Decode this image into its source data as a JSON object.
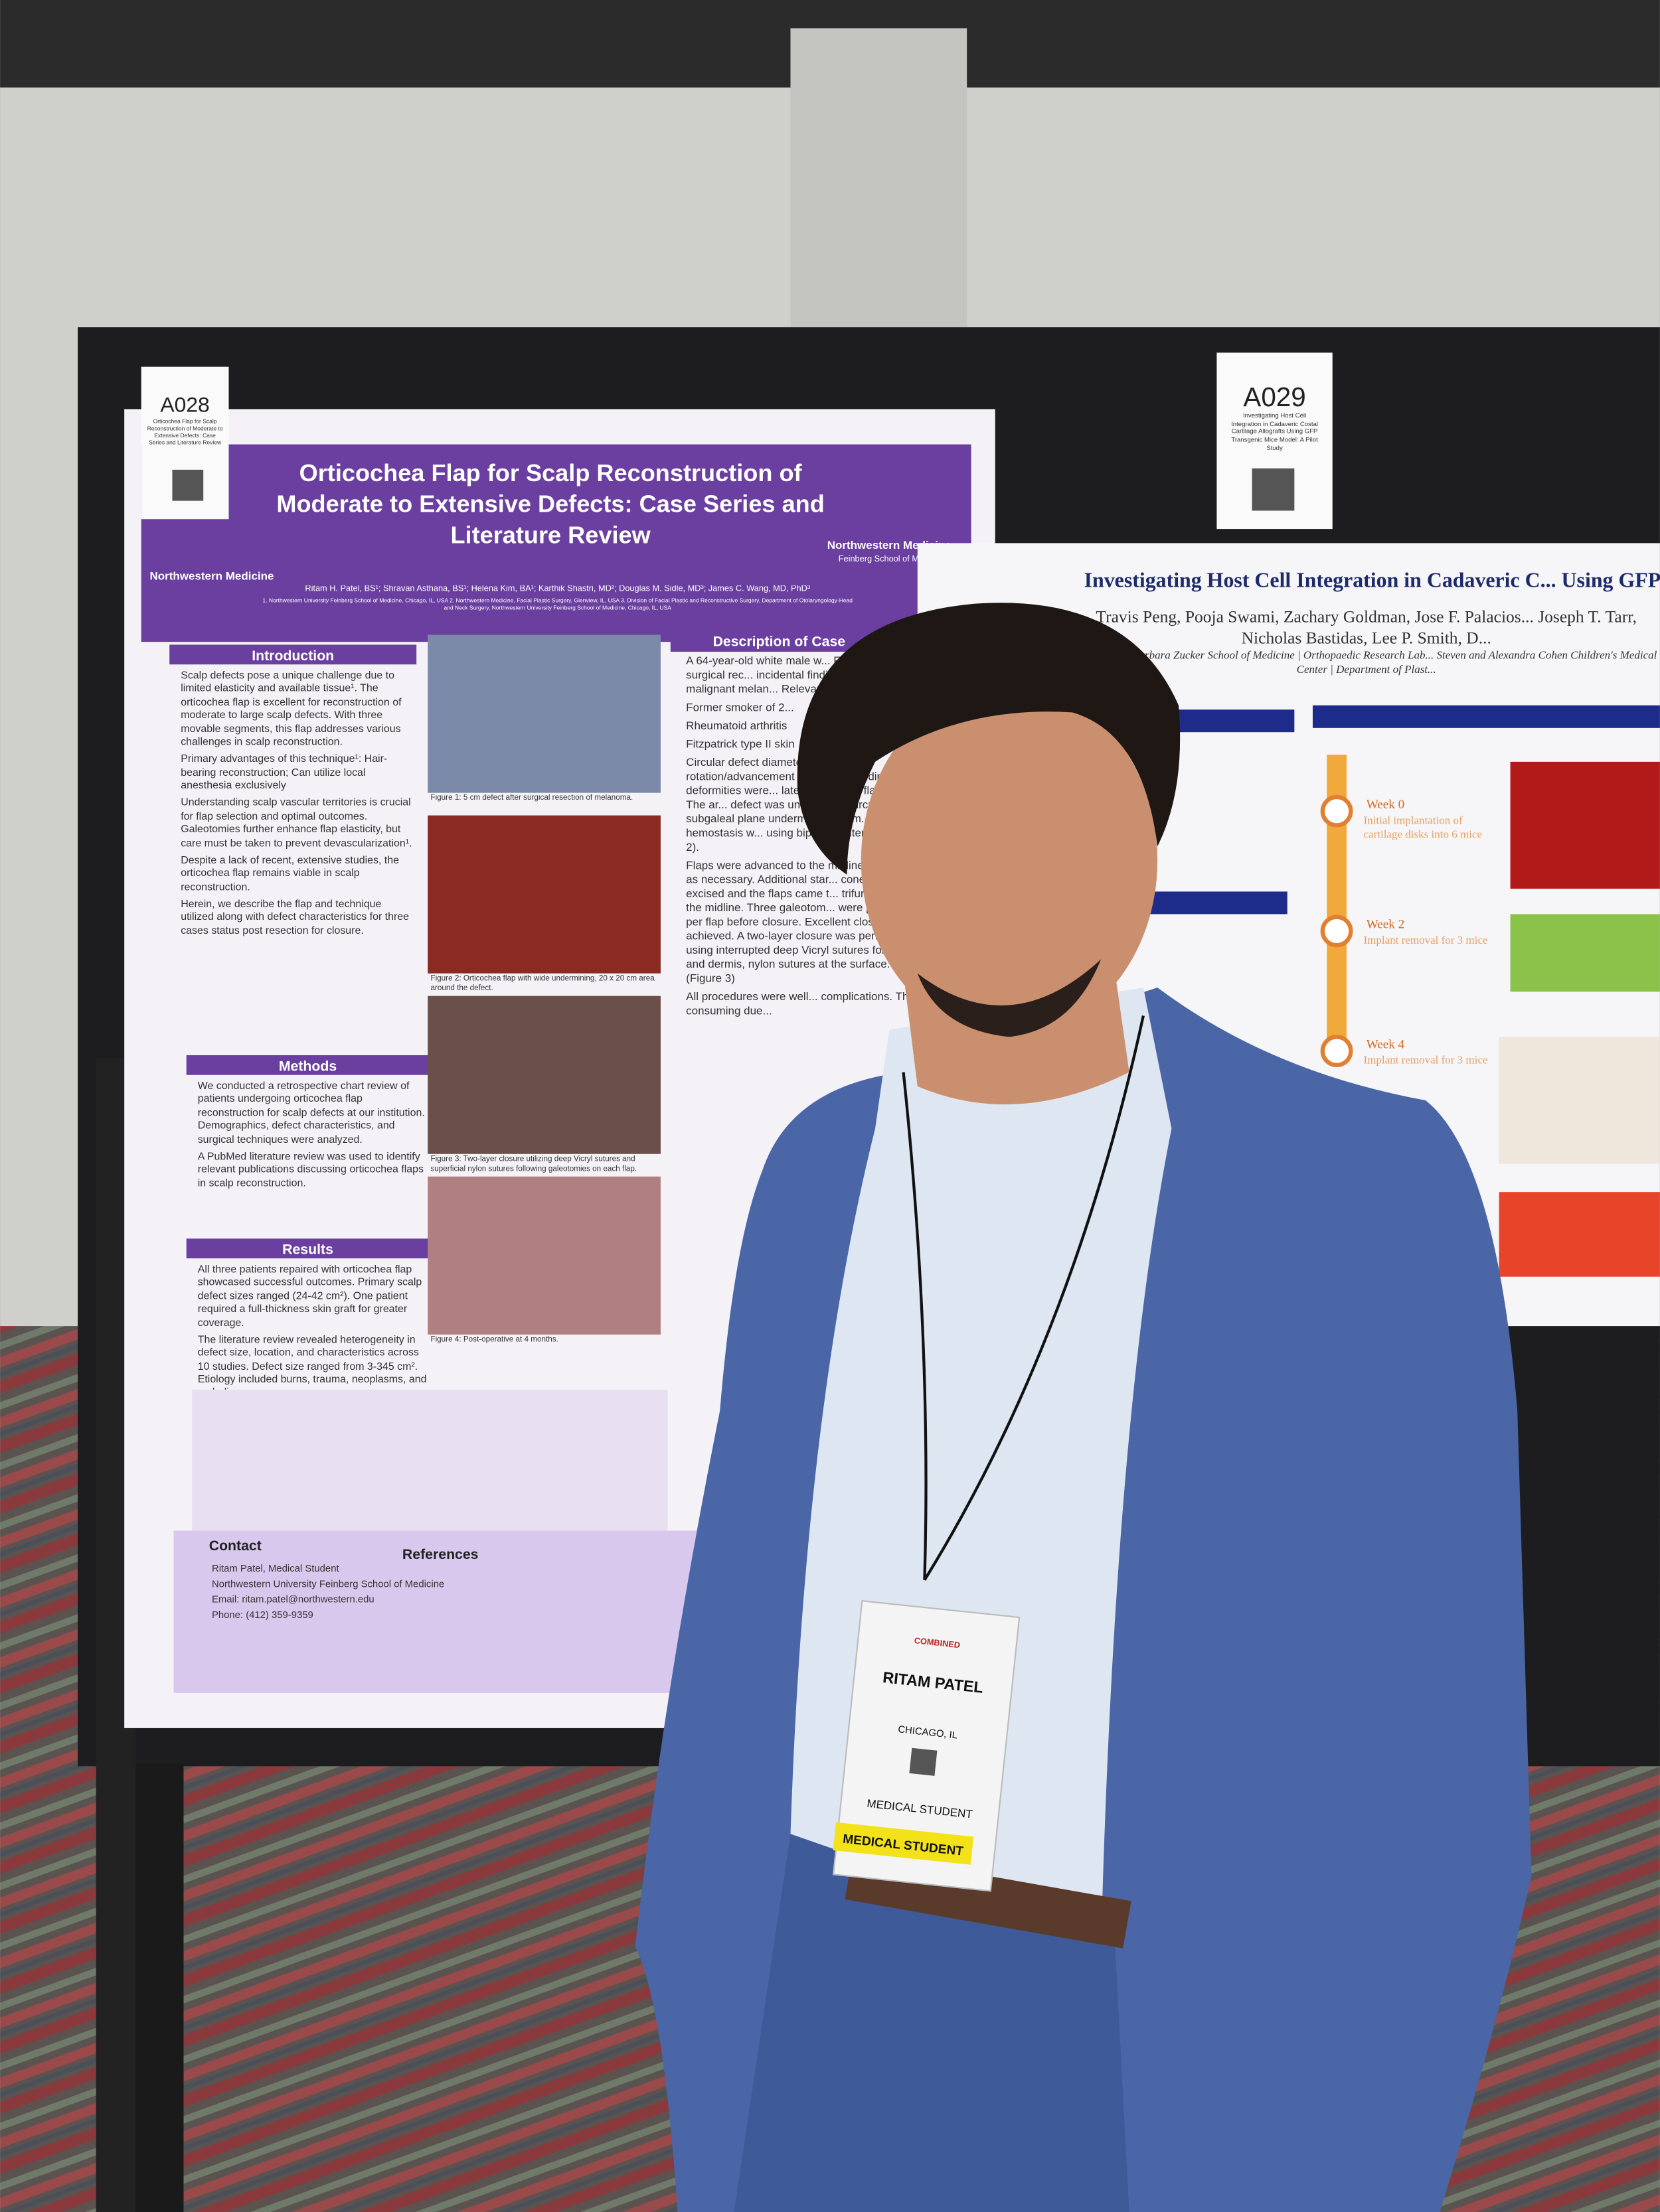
{
  "tags": {
    "left": {
      "code": "A028",
      "caption": "Orticochea Flap for Scalp Reconstruction of Moderate to Extensive Defects: Case Series and Literature Review"
    },
    "right": {
      "code": "A029",
      "caption": "Investigating Host Cell Integration in Cadaveric Costal Cartilage Allografts Using GFP Transgenic Mice Model: A Pilot Study"
    }
  },
  "poster_left": {
    "title": "Orticochea Flap for Scalp Reconstruction of Moderate to Extensive Defects: Case Series and Literature Review",
    "logo": "Northwestern Medicine",
    "logo_sub": "Feinberg School of Medicine",
    "authors": "Ritam H. Patel, BS¹; Shravan Asthana, BS¹; Helena Kim, BA¹; Karthik Shastri, MD²; Douglas M. Sidle, MD³; James C. Wang, MD, PhD³",
    "affiliations": "1. Northwestern University Feinberg School of Medicine, Chicago, IL, USA  2. Northwestern Medicine, Facial Plastic Surgery, Glenview, IL, USA  3. Division of Facial Plastic and Reconstructive Surgery, Department of Otolaryngology-Head and Neck Surgery, Northwestern University Feinberg School of Medicine, Chicago, IL, USA",
    "sections": [
      {
        "heading": "Introduction",
        "bullets": [
          "Scalp defects pose a unique challenge due to limited elasticity and available tissue¹. The orticochea flap is excellent for reconstruction of moderate to large scalp defects. With three movable segments, this flap addresses various challenges in scalp reconstruction.",
          "Primary advantages of this technique¹: Hair-bearing reconstruction; Can utilize local anesthesia exclusively",
          "Understanding scalp vascular territories is crucial for flap selection and optimal outcomes. Galeotomies further enhance flap elasticity, but care must be taken to prevent devascularization¹.",
          "Despite a lack of recent, extensive studies, the orticochea flap remains viable in scalp reconstruction.",
          "Herein, we describe the flap and technique utilized along with defect characteristics for three cases status post resection for closure."
        ]
      },
      {
        "heading": "Methods",
        "bullets": [
          "We conducted a retrospective chart review of patients undergoing orticochea flap reconstruction for scalp defects at our institution. Demographics, defect characteristics, and surgical techniques were analyzed.",
          "A PubMed literature review was used to identify relevant publications discussing orticochea flaps in scalp reconstruction."
        ]
      },
      {
        "heading": "Results",
        "bullets": [
          "All three patients repaired with orticochea flap showcased successful outcomes. Primary scalp defect sizes ranged (24-42 cm²). One patient required a full-thickness skin graft for greater coverage.",
          "The literature review revealed heterogeneity in defect size, location, and characteristics across 10 studies. Defect size ranged from 3-345 cm². Etiology included burns, trauma, neoplasms, and emboli."
        ]
      }
    ],
    "figures": [
      "Figure 1: 5 cm defect after surgical resection of melanoma.",
      "Figure 2: Orticochea flap with wide undermining, 20 x 20 cm area around the defect.",
      "Figure 3: Two-layer closure utilizing deep Vicryl sutures and superficial nylon sutures following galeotomies on each flap.",
      "Figure 4: Post-operative at 4 months."
    ],
    "case_heading": "Description of Case",
    "case_bullets": [
      "A 64-year-old white male w... FPRS for post-surgical rec... incidental finding of ... as a malignant melan... Relevant risk factors",
      "Former smoker of 2...",
      "Rheumatoid arthritis",
      "Fitzpatrick type II skin",
      "Circular defect diameter was... rotation/advancement flaps w... Standing cone deformities were... laterally at each flap tip. The ar... defect was undermined circumf... total subgaleal plane undermini... 20 cm. Meticulous hemostasis w... using bipolar cautery (Figure 2).",
      "Flaps were advanced to the midline... rotated as necessary. Additional star... cone were excised and the flaps came t... trifurcation in the midline. Three galeotom... were performed per flap before closure. Excellent closure was achieved. A two-layer closure was performed using interrupted deep Vicryl sutures for galea and dermis, nylon sutures at the surface. (Figure 3)",
      "All procedures were well... complications. Thi... consuming due..."
    ],
    "contact_heading": "Contact",
    "contact": [
      "Ritam Patel, Medical Student",
      "Northwestern University Feinberg School of Medicine",
      "Email: ritam.patel@northwestern.edu",
      "Phone: (412) 359-9359"
    ],
    "references_heading": "References"
  },
  "poster_right": {
    "title": "Investigating Host Cell Integration in Cadaveric C... Using GFP Transgenic Mice Model: A...",
    "authors": "Travis Peng, Pooja Swami, Zachary Goldman, Jose F. Palacios... Joseph T. Tarr, Nicholas Bastidas, Lee P. Smith, D...",
    "affiliations": "Donald and Barbara Zucker School of Medicine | Orthopaedic Research Lab... Steven and Alexandra Cohen Children's Medical Center | Department of Plast...",
    "timeline": [
      {
        "label": "Week 0",
        "text": "Initial implantation of cartilage disks into 6 mice"
      },
      {
        "label": "Week 2",
        "text": "Implant removal for 3 mice"
      },
      {
        "label": "Week 4",
        "text": "Implant removal for 3 mice"
      }
    ]
  },
  "badge": {
    "event": "COMBINED",
    "name": "RITAM PATEL",
    "city": "CHICAGO, IL",
    "role": "MEDICAL STUDENT",
    "ribbon": "MEDICAL STUDENT"
  }
}
